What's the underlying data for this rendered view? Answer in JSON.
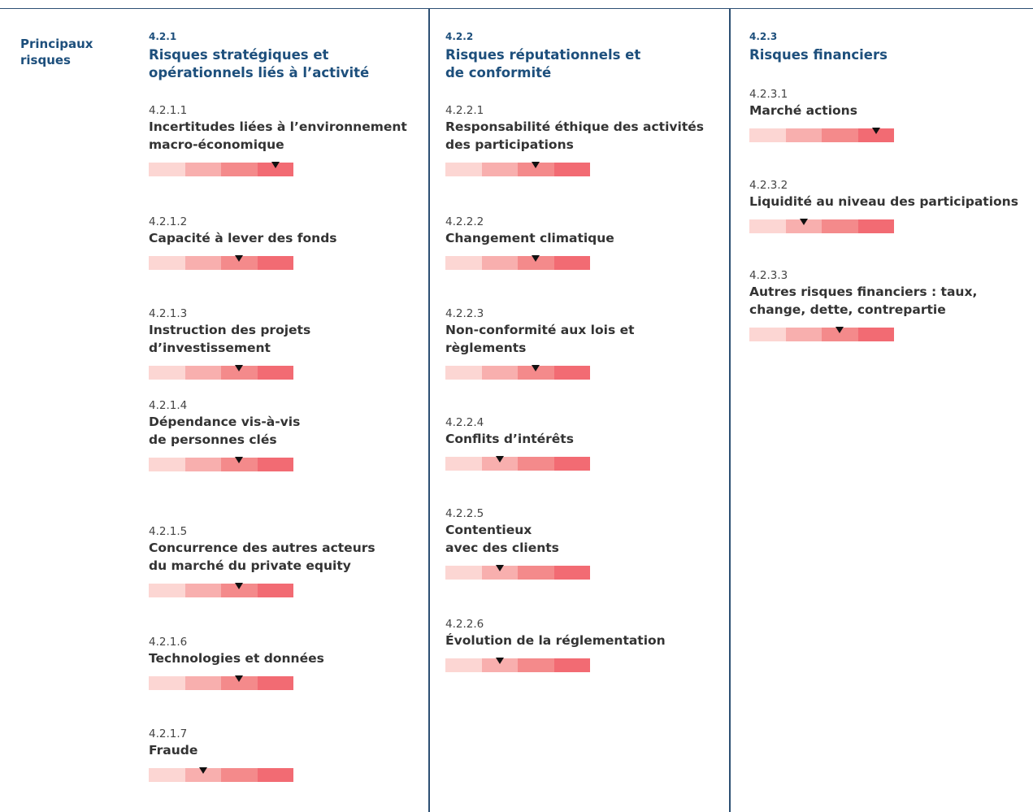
{
  "side_label": "Principaux\nrisques",
  "columns": [
    {
      "number": "4.2.1",
      "title": "Risques stratégiques et\nopérationnels liés à l’activité",
      "items": [
        {
          "number": "4.2.1.1",
          "title": "Incertitudes liées à l’environnement\nmacro-économique",
          "level": 4
        },
        {
          "number": "4.2.1.2",
          "title": "Capacité à lever des fonds",
          "level": 3
        },
        {
          "number": "4.2.1.3",
          "title": "Instruction des projets\nd’investissement",
          "level": 3
        },
        {
          "number": "4.2.1.4",
          "title": "Dépendance vis-à-vis\nde personnes clés",
          "level": 3
        },
        {
          "number": "4.2.1.5",
          "title": "Concurrence des autres acteurs\ndu marché du private equity",
          "level": 3
        },
        {
          "number": "4.2.1.6",
          "title": "Technologies et données",
          "level": 3
        },
        {
          "number": "4.2.1.7",
          "title": "Fraude",
          "level": 2
        }
      ]
    },
    {
      "number": "4.2.2",
      "title": "Risques réputationnels et\nde conformité",
      "items": [
        {
          "number": "4.2.2.1",
          "title": "Responsabilité éthique des activités\ndes participations",
          "level": 3
        },
        {
          "number": "4.2.2.2",
          "title": "Changement climatique",
          "level": 3
        },
        {
          "number": "4.2.2.3",
          "title": "Non-conformité aux lois et\nrèglements",
          "level": 3
        },
        {
          "number": "4.2.2.4",
          "title": "Conflits d’intérêts",
          "level": 2
        },
        {
          "number": "4.2.2.5",
          "title": "Contentieux\navec des clients",
          "level": 2
        },
        {
          "number": "4.2.2.6",
          "title": "Évolution de la réglementation",
          "level": 2
        }
      ]
    },
    {
      "number": "4.2.3",
      "title": "Risques financiers",
      "items": [
        {
          "number": "4.2.3.1",
          "title": "Marché actions",
          "level": 4
        },
        {
          "number": "4.2.3.2",
          "title": "Liquidité au niveau des participations",
          "level": 2
        },
        {
          "number": "4.2.3.3",
          "title": "Autres risques financiers : taux,\nchange, dette, contrepartie",
          "level": 3
        }
      ]
    }
  ]
}
